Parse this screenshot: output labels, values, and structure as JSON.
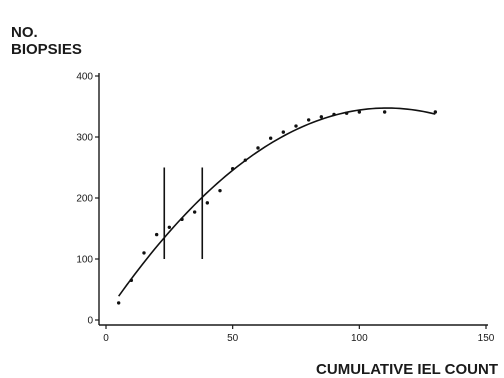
{
  "chart_data": {
    "type": "scatter",
    "title": "",
    "ylabel_lines": [
      "NO.",
      "BIOPSIES"
    ],
    "xlabel": "CUMULATIVE IEL COUNT",
    "xlim": [
      0,
      150
    ],
    "ylim": [
      0,
      400
    ],
    "x_ticks": [
      0,
      50,
      100,
      150
    ],
    "y_ticks": [
      0,
      100,
      200,
      300,
      400
    ],
    "grid": false,
    "legend": "none",
    "series": [
      {
        "values_x": [
          5,
          10,
          15,
          20,
          25,
          30,
          35,
          40,
          45,
          50,
          55,
          60,
          65,
          70,
          75,
          80,
          85,
          90,
          95,
          100,
          110,
          130
        ],
        "values_y": [
          28,
          65,
          110,
          140,
          152,
          165,
          177,
          192,
          212,
          248,
          262,
          282,
          298,
          308,
          318,
          328,
          333,
          337,
          339,
          341,
          341,
          341
        ]
      }
    ],
    "fit_curve": {
      "type": "quadratic",
      "x_range": [
        5,
        130
      ],
      "coefficients": [
        9.2,
        6.1,
        -0.0275
      ]
    },
    "vertical_markers": [
      {
        "x": 23,
        "y_range": [
          100,
          250
        ]
      },
      {
        "x": 38,
        "y_range": [
          100,
          250
        ]
      }
    ]
  }
}
